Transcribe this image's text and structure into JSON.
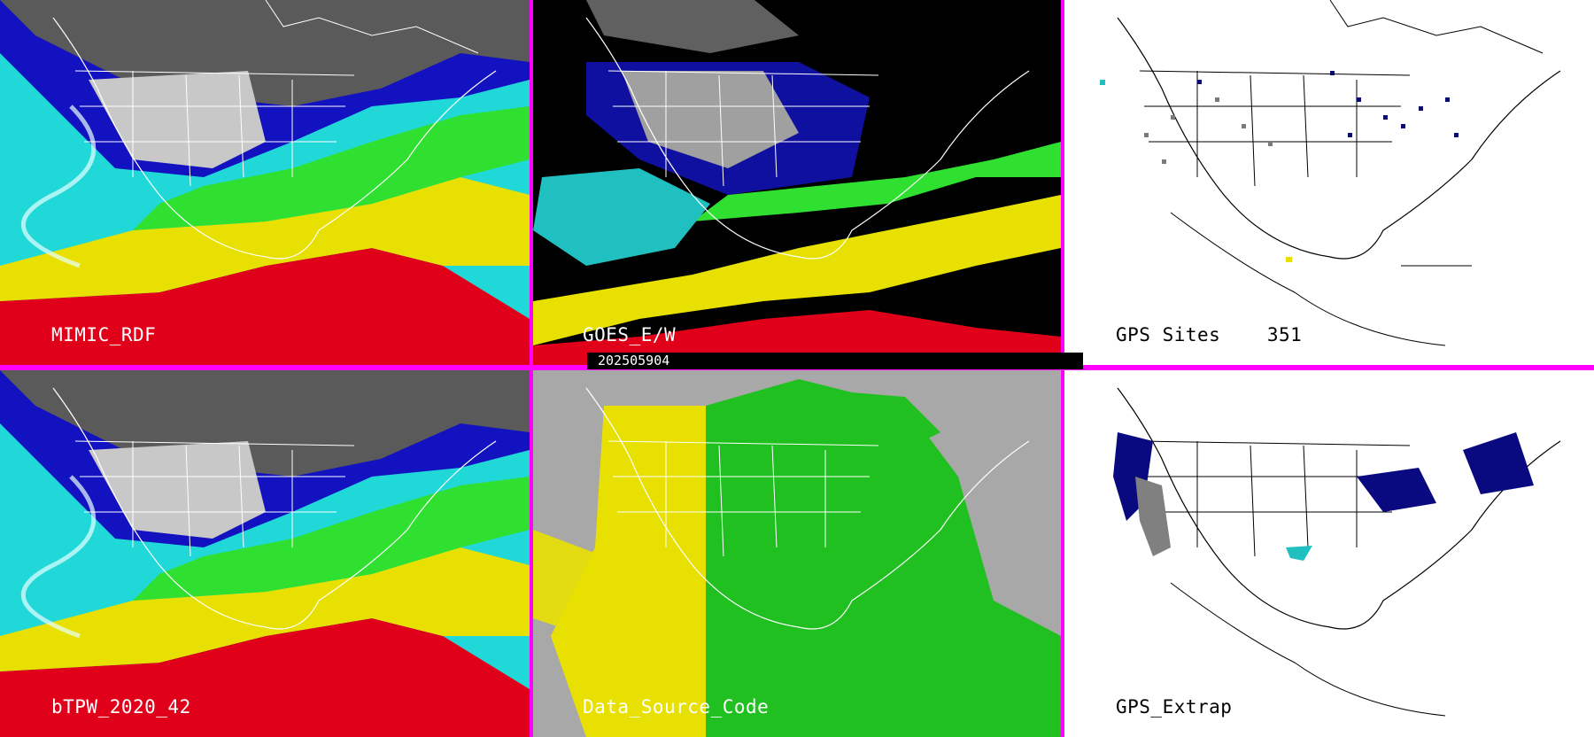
{
  "timestamp": "202505904",
  "panels": [
    {
      "id": "mimic",
      "label": "MIMIC_RDF",
      "style": "tpw"
    },
    {
      "id": "goes",
      "label": "GOES_E/W",
      "style": "goes"
    },
    {
      "id": "gps-sites",
      "label": "GPS Sites    351",
      "style": "sites"
    },
    {
      "id": "btpw",
      "label": "bTPW_2020_42",
      "style": "tpw"
    },
    {
      "id": "data-source",
      "label": "Data_Source_Code",
      "style": "source"
    },
    {
      "id": "gps-extrap",
      "label": "GPS_Extrap",
      "style": "extrap"
    }
  ],
  "colors": {
    "divider": "#ff00ff",
    "red": "#e0001a",
    "yellow": "#e8e000",
    "green": "#20e020",
    "cyan": "#20e8e8",
    "blue": "#1010c0",
    "navy": "#0a0a70",
    "gray": "#a8a8a8"
  }
}
